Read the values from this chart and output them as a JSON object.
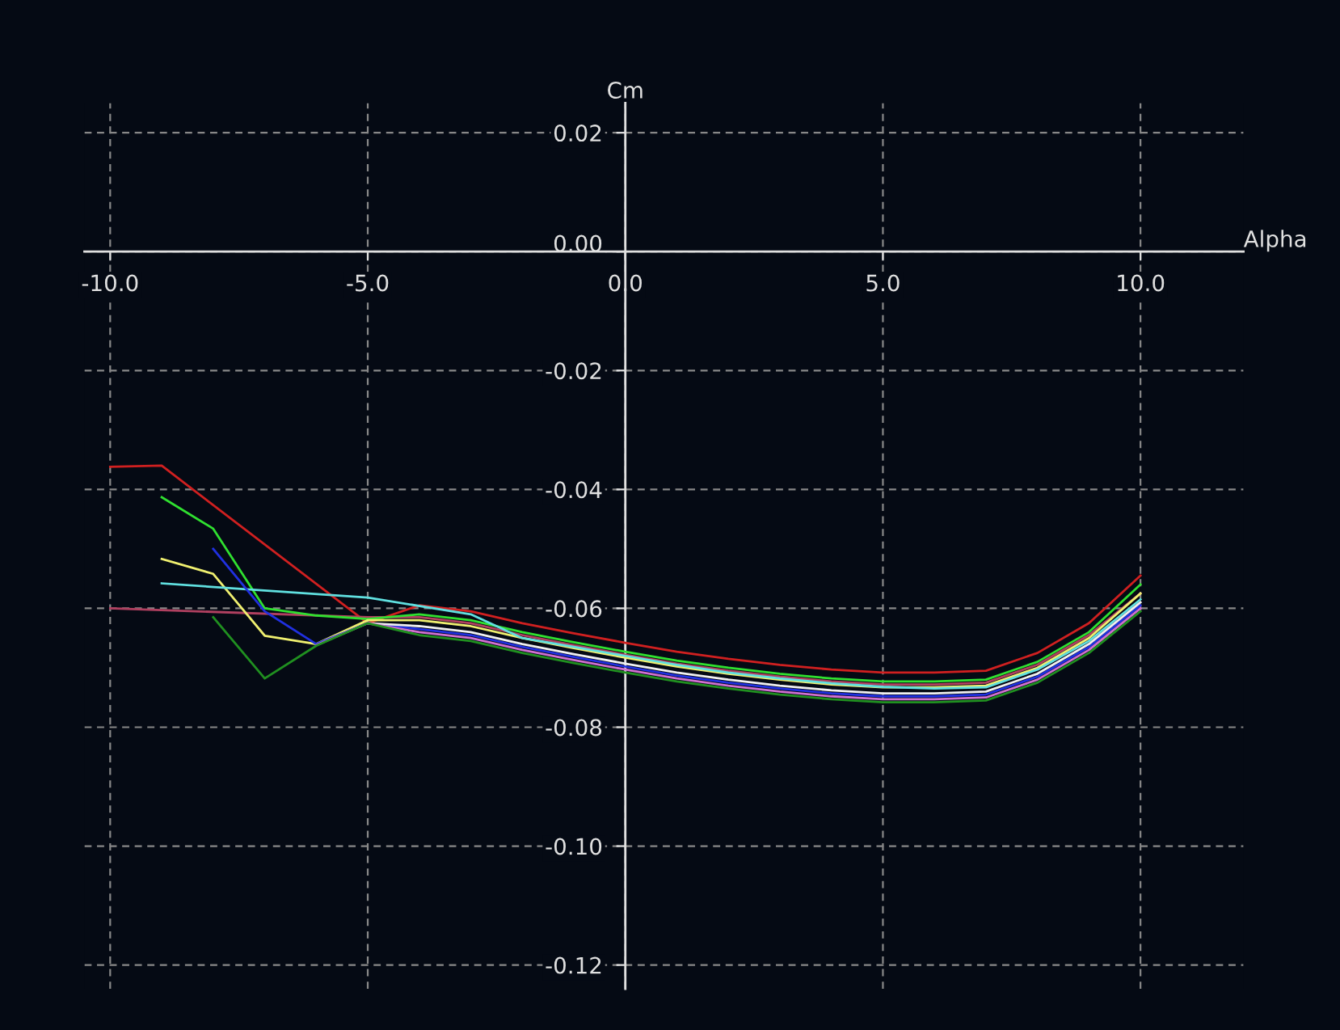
{
  "chart_data": {
    "type": "line",
    "xlabel": "Alpha",
    "ylabel": "Cm",
    "grid": true,
    "legend": false,
    "marker": "none",
    "line_style": "solid",
    "xlim": [
      -10.5,
      12.0
    ],
    "ylim": [
      -0.124,
      0.025
    ],
    "xticks": [
      {
        "value": -10,
        "label": "-10.0"
      },
      {
        "value": -5,
        "label": "-5.0"
      },
      {
        "value": 0,
        "label": "0.0"
      },
      {
        "value": 5,
        "label": "5.0"
      },
      {
        "value": 10,
        "label": "10.0"
      }
    ],
    "yticks": [
      {
        "value": 0.02,
        "label": "0.02"
      },
      {
        "value": 0,
        "label": "0.00"
      },
      {
        "value": -0.02,
        "label": "-0.02"
      },
      {
        "value": -0.04,
        "label": "-0.04"
      },
      {
        "value": -0.06,
        "label": "-0.06"
      },
      {
        "value": -0.08,
        "label": "-0.08"
      },
      {
        "value": -0.1,
        "label": "-0.10"
      },
      {
        "value": -0.12,
        "label": "-0.12"
      }
    ],
    "series": [
      {
        "color": "#d02020",
        "x": [
          -10,
          -9,
          -5,
          -4,
          -3,
          -2,
          -1,
          0,
          1,
          2,
          3,
          4,
          5,
          6,
          7,
          8,
          9,
          10
        ],
        "values": [
          -0.0362,
          -0.036,
          -0.0625,
          -0.0595,
          -0.0605,
          -0.0625,
          -0.0642,
          -0.0658,
          -0.0673,
          -0.0685,
          -0.0695,
          -0.0703,
          -0.0708,
          -0.0708,
          -0.0705,
          -0.0675,
          -0.0625,
          -0.0545
        ]
      },
      {
        "color": "#b04060",
        "x": [
          -10,
          -5,
          -4,
          -3,
          -2,
          -1,
          0,
          1,
          2,
          3,
          4,
          5,
          6,
          7,
          8,
          9,
          10
        ],
        "values": [
          -0.06,
          -0.0615,
          -0.0615,
          -0.0625,
          -0.0645,
          -0.0662,
          -0.0678,
          -0.0693,
          -0.0705,
          -0.0715,
          -0.0723,
          -0.0728,
          -0.0728,
          -0.0725,
          -0.0695,
          -0.0645,
          -0.0575
        ]
      },
      {
        "color": "#30e030",
        "x": [
          -9,
          -8,
          -7,
          -6,
          -5,
          -4,
          -3,
          -2,
          -1,
          0,
          1,
          2,
          3,
          4,
          5,
          6,
          7,
          8,
          9,
          10
        ],
        "values": [
          -0.0413,
          -0.0466,
          -0.06,
          -0.0612,
          -0.0618,
          -0.061,
          -0.062,
          -0.064,
          -0.0657,
          -0.0673,
          -0.0688,
          -0.07,
          -0.071,
          -0.0718,
          -0.0723,
          -0.0723,
          -0.072,
          -0.069,
          -0.064,
          -0.056
        ]
      },
      {
        "color": "#f0f070",
        "x": [
          -9,
          -8,
          -7,
          -6,
          -5,
          -4,
          -3,
          -2,
          -1,
          0,
          1,
          2,
          3,
          4,
          5,
          6,
          7,
          8,
          9,
          10
        ],
        "values": [
          -0.0517,
          -0.0542,
          -0.0646,
          -0.066,
          -0.062,
          -0.062,
          -0.063,
          -0.065,
          -0.0667,
          -0.0683,
          -0.0698,
          -0.071,
          -0.072,
          -0.0728,
          -0.0733,
          -0.0733,
          -0.073,
          -0.07,
          -0.065,
          -0.0575
        ]
      },
      {
        "color": "#60e0e0",
        "x": [
          -9,
          -5,
          -3,
          -2,
          -1,
          0,
          1,
          2,
          3,
          4,
          5,
          6,
          7,
          8,
          9,
          10
        ],
        "values": [
          -0.0558,
          -0.0582,
          -0.061,
          -0.065,
          -0.0665,
          -0.068,
          -0.0695,
          -0.0708,
          -0.0718,
          -0.0726,
          -0.0732,
          -0.0735,
          -0.0733,
          -0.0703,
          -0.0655,
          -0.0585
        ]
      },
      {
        "color": "#2030e0",
        "x": [
          -8,
          -7,
          -6,
          -5,
          -4,
          -3,
          -2,
          -1,
          0,
          1,
          2,
          3,
          4,
          5,
          6,
          7,
          8,
          9,
          10
        ],
        "values": [
          -0.05,
          -0.0605,
          -0.066,
          -0.0625,
          -0.0635,
          -0.0645,
          -0.0665,
          -0.0682,
          -0.0698,
          -0.0713,
          -0.0725,
          -0.0735,
          -0.0743,
          -0.0748,
          -0.0748,
          -0.0745,
          -0.0715,
          -0.0665,
          -0.0595
        ]
      },
      {
        "color": "#f0f0f0",
        "x": [
          -5,
          -4,
          -3,
          -2,
          -1,
          0,
          1,
          2,
          3,
          4,
          5,
          6,
          7,
          8,
          9,
          10
        ],
        "values": [
          -0.0625,
          -0.063,
          -0.064,
          -0.066,
          -0.0677,
          -0.0693,
          -0.0708,
          -0.072,
          -0.073,
          -0.0738,
          -0.0743,
          -0.0743,
          -0.074,
          -0.071,
          -0.066,
          -0.059
        ]
      },
      {
        "color": "#d070d0",
        "x": [
          -6,
          -5,
          -4,
          -3,
          -2,
          -1,
          0,
          1,
          2,
          3,
          4,
          5,
          6,
          7,
          8,
          9,
          10
        ],
        "values": [
          -0.0662,
          -0.0625,
          -0.064,
          -0.065,
          -0.067,
          -0.0687,
          -0.0703,
          -0.0718,
          -0.073,
          -0.074,
          -0.0748,
          -0.0753,
          -0.0753,
          -0.075,
          -0.072,
          -0.067,
          -0.06
        ]
      },
      {
        "color": "#209020",
        "x": [
          -8,
          -7,
          -6,
          -5,
          -4,
          -3,
          -2,
          -1,
          0,
          1,
          2,
          3,
          4,
          5,
          6,
          7,
          8,
          9,
          10
        ],
        "values": [
          -0.0615,
          -0.0718,
          -0.0663,
          -0.0625,
          -0.0645,
          -0.0655,
          -0.0675,
          -0.0692,
          -0.0708,
          -0.0723,
          -0.0735,
          -0.0745,
          -0.0753,
          -0.0758,
          -0.0758,
          -0.0755,
          -0.0725,
          -0.0675,
          -0.0605
        ]
      }
    ]
  }
}
